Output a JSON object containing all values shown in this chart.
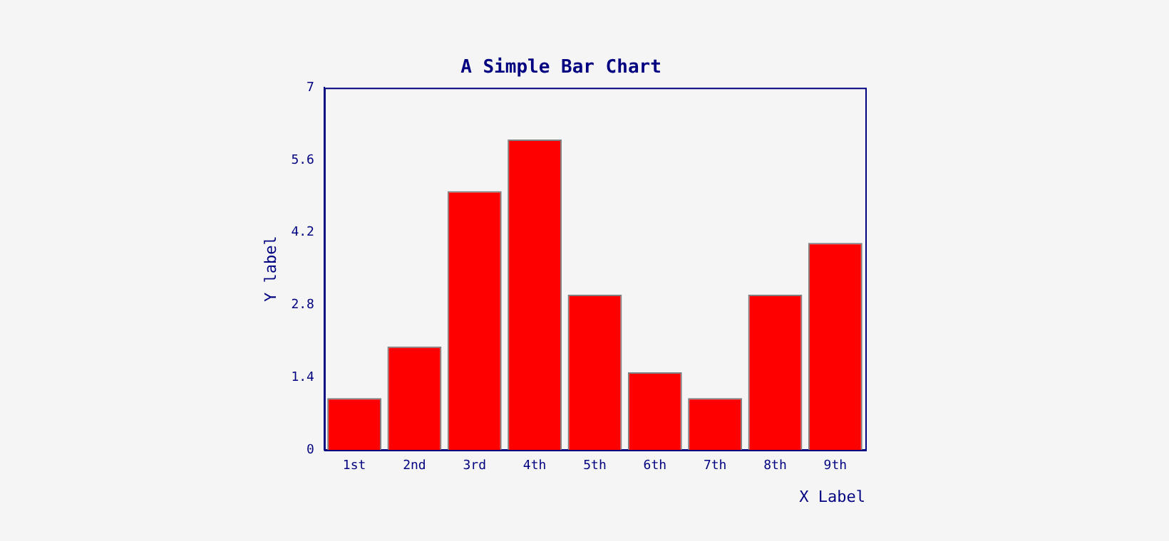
{
  "chart_data": {
    "type": "bar",
    "title": "A Simple Bar Chart",
    "xlabel": "X Label",
    "ylabel": "Y label",
    "categories": [
      "1st",
      "2nd",
      "3rd",
      "4th",
      "5th",
      "6th",
      "7th",
      "8th",
      "9th"
    ],
    "values": [
      1,
      2,
      5,
      6,
      3,
      1.5,
      1,
      3,
      4
    ],
    "color": "#ff0000",
    "ylim": [
      0,
      7
    ],
    "yticks": [
      0,
      1.4,
      2.8,
      4.2,
      5.6,
      7
    ],
    "grid": false,
    "legend": false
  }
}
